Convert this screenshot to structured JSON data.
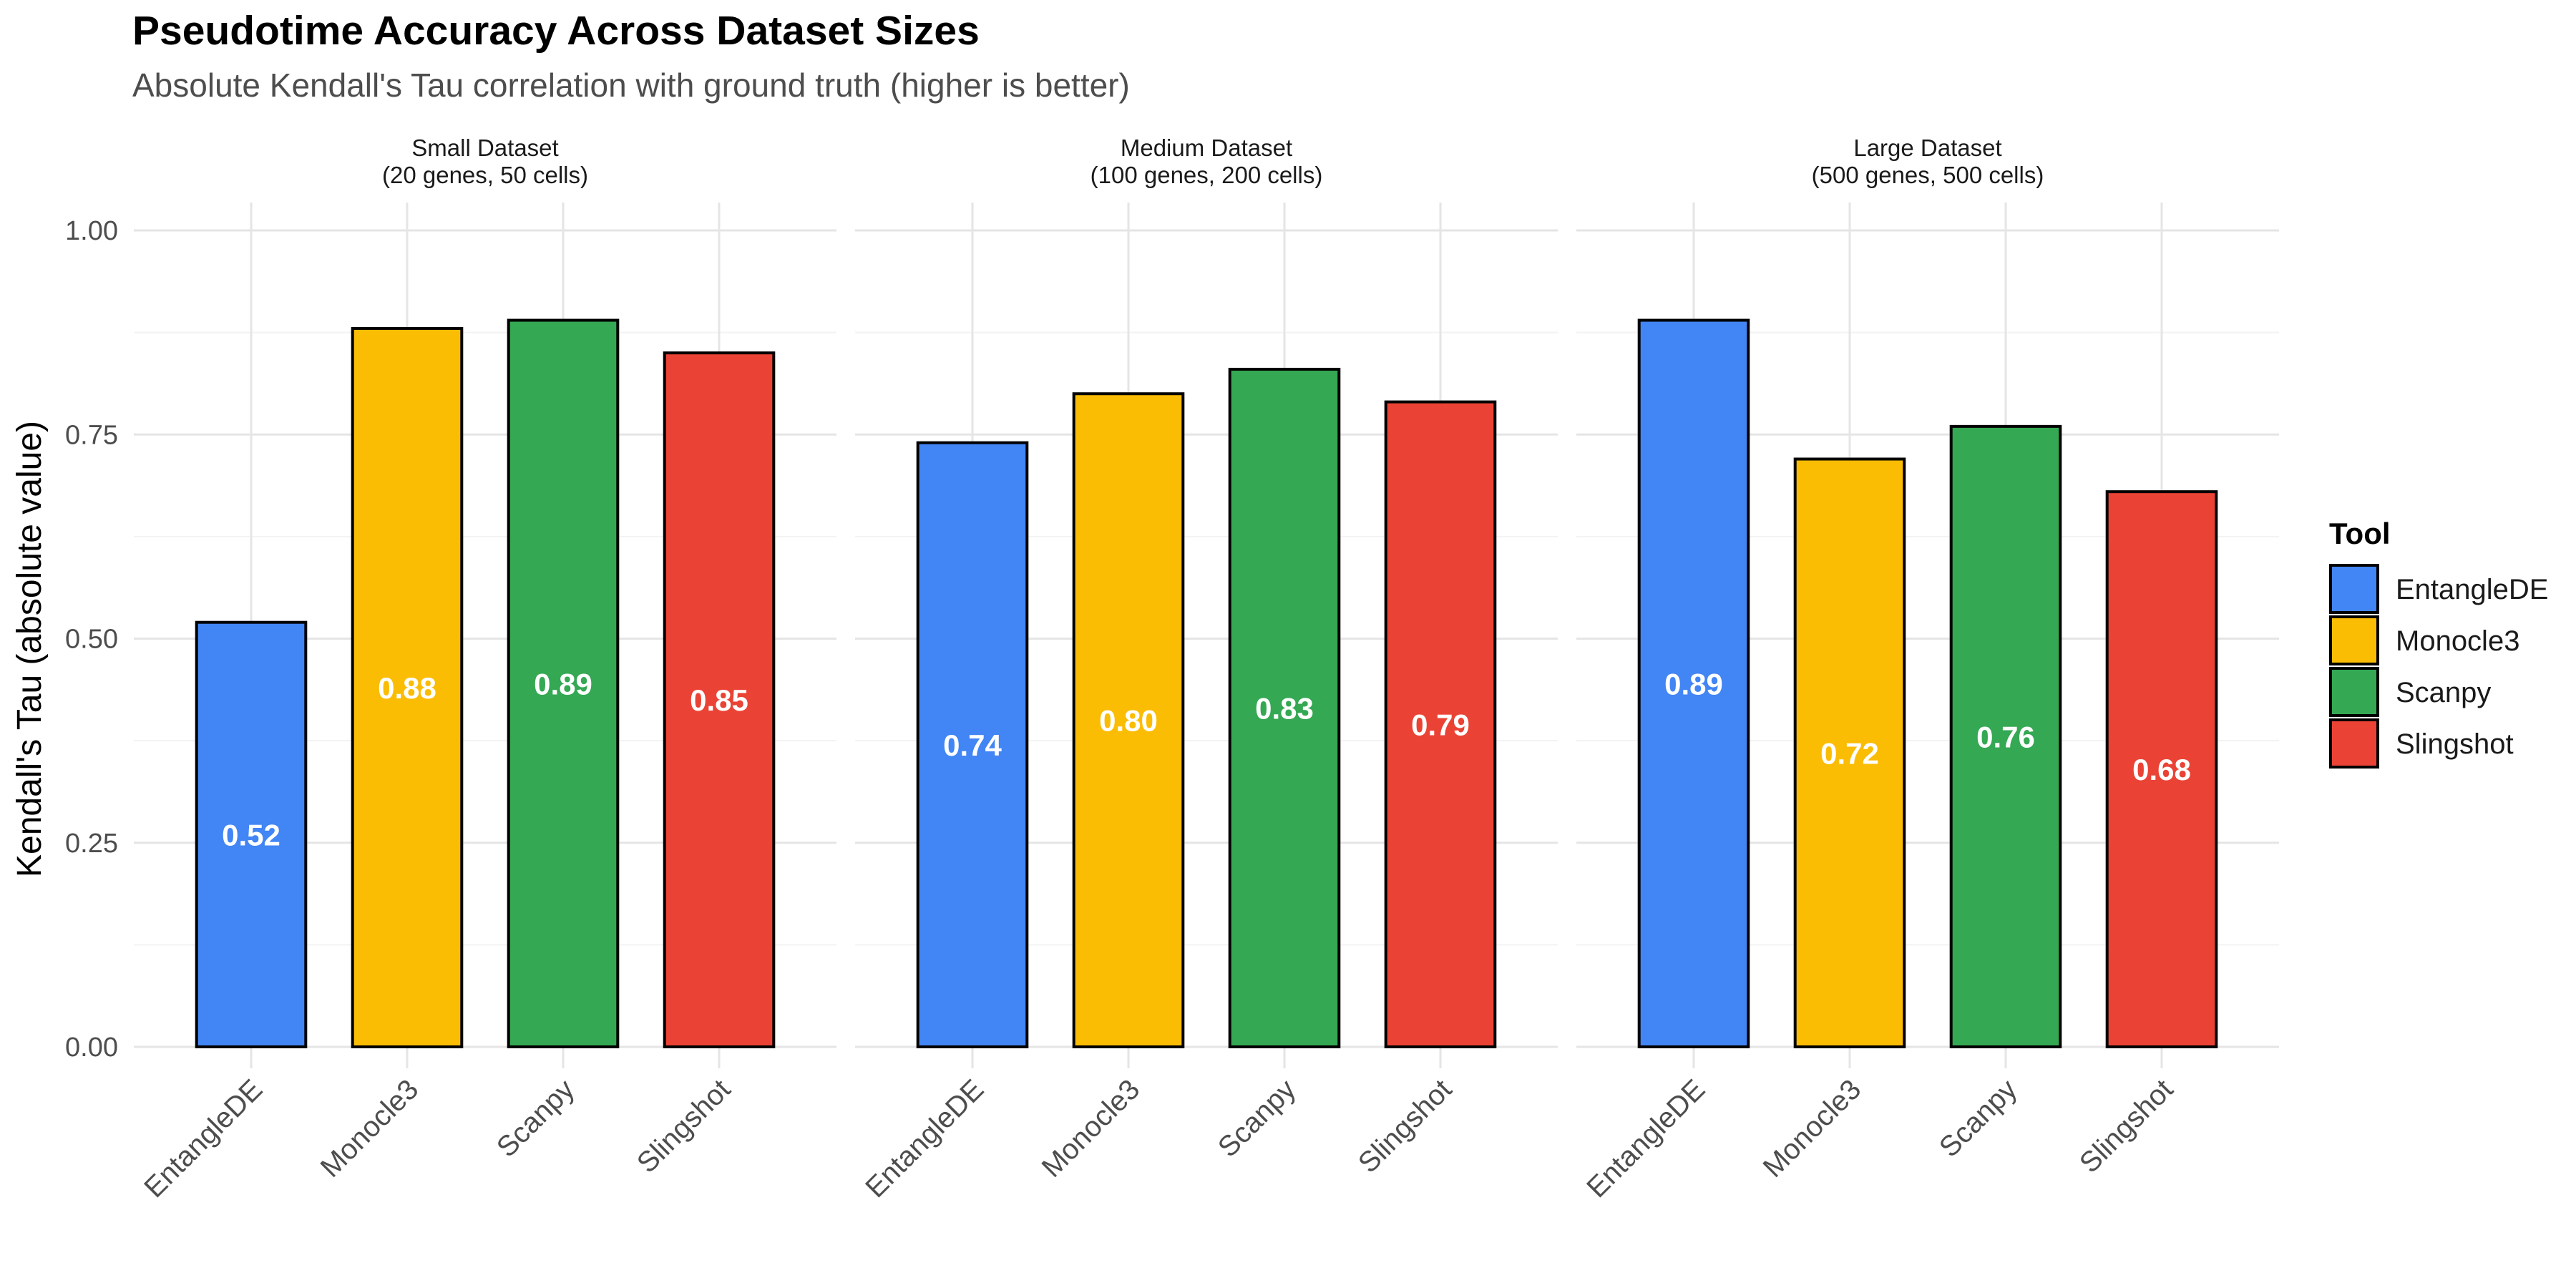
{
  "chart_data": {
    "type": "bar",
    "title": "Pseudotime Accuracy Across Dataset Sizes",
    "subtitle": "Absolute Kendall's Tau correlation with ground truth (higher is better)",
    "ylabel": "Kendall's Tau (absolute value)",
    "xlabel": "",
    "ylim": [
      0,
      1.05
    ],
    "yticks": [
      0.0,
      0.25,
      0.5,
      0.75,
      1.0
    ],
    "ytick_labels": [
      "0.00",
      "0.25",
      "0.50",
      "0.75",
      "1.00"
    ],
    "categories": [
      "EntangleDE",
      "Monocle3",
      "Scanpy",
      "Slingshot"
    ],
    "colors": {
      "EntangleDE": "#4285F4",
      "Monocle3": "#FBBC04",
      "Scanpy": "#34A853",
      "Slingshot": "#EA4335"
    },
    "grid": true,
    "legend": {
      "title": "Tool",
      "placement": "right",
      "entries": [
        "EntangleDE",
        "Monocle3",
        "Scanpy",
        "Slingshot"
      ]
    },
    "panels": [
      {
        "strip_line1": "Small Dataset",
        "strip_line2": "(20 genes, 50 cells)",
        "values": [
          0.52,
          0.88,
          0.89,
          0.85
        ],
        "value_labels": [
          "0.52",
          "0.88",
          "0.89",
          "0.85"
        ]
      },
      {
        "strip_line1": "Medium Dataset",
        "strip_line2": "(100 genes, 200 cells)",
        "values": [
          0.74,
          0.8,
          0.83,
          0.79
        ],
        "value_labels": [
          "0.74",
          "0.80",
          "0.83",
          "0.79"
        ]
      },
      {
        "strip_line1": "Large Dataset",
        "strip_line2": "(500 genes, 500 cells)",
        "values": [
          0.89,
          0.72,
          0.76,
          0.68
        ],
        "value_labels": [
          "0.89",
          "0.72",
          "0.76",
          "0.68"
        ]
      }
    ]
  }
}
